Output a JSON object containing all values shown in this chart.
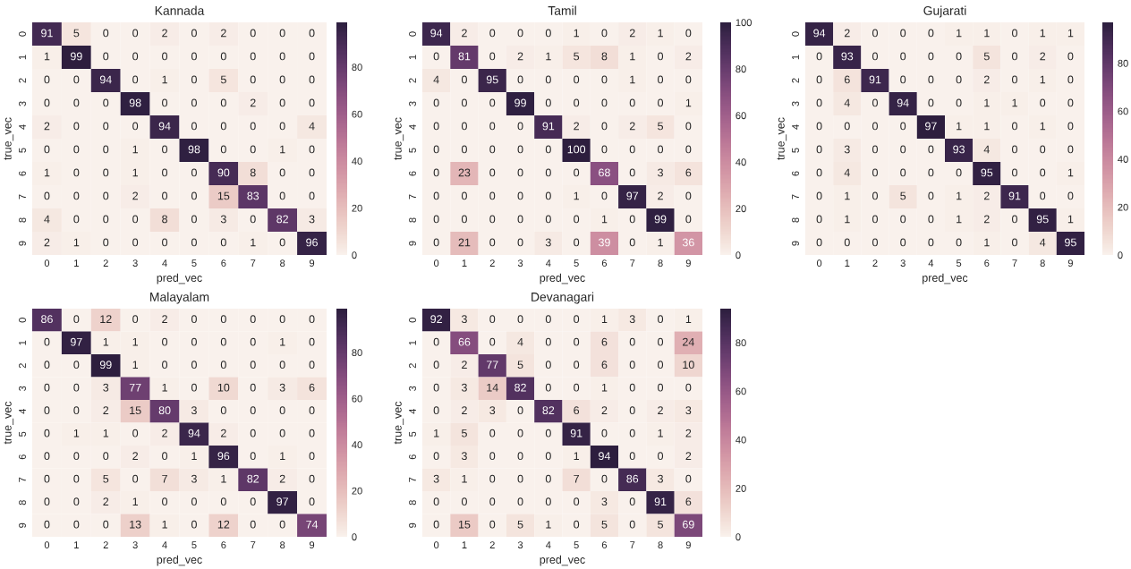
{
  "chart_data": [
    {
      "type": "heatmap",
      "title": "Kannada",
      "xlabel": "pred_vec",
      "ylabel": "true_vec",
      "categories": [
        "0",
        "1",
        "2",
        "3",
        "4",
        "5",
        "6",
        "7",
        "8",
        "9"
      ],
      "y_categories": [
        "0",
        "1",
        "2",
        "3",
        "4",
        "5",
        "6",
        "7",
        "8",
        "9"
      ],
      "cells": [
        [
          91,
          5,
          0,
          0,
          2,
          0,
          2,
          0,
          0,
          0
        ],
        [
          1,
          99,
          0,
          0,
          0,
          0,
          0,
          0,
          0,
          0
        ],
        [
          0,
          0,
          94,
          0,
          1,
          0,
          5,
          0,
          0,
          0
        ],
        [
          0,
          0,
          0,
          98,
          0,
          0,
          0,
          2,
          0,
          0
        ],
        [
          2,
          0,
          0,
          0,
          94,
          0,
          0,
          0,
          0,
          4
        ],
        [
          0,
          0,
          0,
          1,
          0,
          98,
          0,
          0,
          1,
          0
        ],
        [
          1,
          0,
          0,
          1,
          0,
          0,
          90,
          8,
          0,
          0
        ],
        [
          0,
          0,
          0,
          2,
          0,
          0,
          15,
          83,
          0,
          0
        ],
        [
          4,
          0,
          0,
          0,
          8,
          0,
          3,
          0,
          82,
          3
        ],
        [
          2,
          1,
          0,
          0,
          0,
          0,
          0,
          1,
          0,
          96
        ]
      ],
      "clim": [
        0,
        99
      ],
      "cticks": [
        0,
        20,
        40,
        60,
        80
      ],
      "data_labels": true
    },
    {
      "type": "heatmap",
      "title": "Tamil",
      "xlabel": "pred_vec",
      "ylabel": "true_vec",
      "categories": [
        "0",
        "1",
        "2",
        "3",
        "4",
        "5",
        "6",
        "7",
        "8",
        "9"
      ],
      "y_categories": [
        "0",
        "1",
        "2",
        "3",
        "4",
        "5",
        "6",
        "7",
        "8",
        "9"
      ],
      "cells": [
        [
          94,
          2,
          0,
          0,
          0,
          1,
          0,
          2,
          1,
          0
        ],
        [
          0,
          81,
          0,
          2,
          1,
          5,
          8,
          1,
          0,
          2
        ],
        [
          4,
          0,
          95,
          0,
          0,
          0,
          0,
          1,
          0,
          0
        ],
        [
          0,
          0,
          0,
          99,
          0,
          0,
          0,
          0,
          0,
          1
        ],
        [
          0,
          0,
          0,
          0,
          91,
          2,
          0,
          2,
          5,
          0
        ],
        [
          0,
          0,
          0,
          0,
          0,
          100,
          0,
          0,
          0,
          0
        ],
        [
          0,
          23,
          0,
          0,
          0,
          0,
          68,
          0,
          3,
          6
        ],
        [
          0,
          0,
          0,
          0,
          0,
          1,
          0,
          97,
          2,
          0
        ],
        [
          0,
          0,
          0,
          0,
          0,
          0,
          1,
          0,
          99,
          0
        ],
        [
          0,
          21,
          0,
          0,
          3,
          0,
          39,
          0,
          1,
          36
        ]
      ],
      "clim": [
        0,
        100
      ],
      "cticks": [
        0,
        20,
        40,
        60,
        80,
        100
      ],
      "data_labels": true
    },
    {
      "type": "heatmap",
      "title": "Gujarati",
      "xlabel": "pred_vec",
      "ylabel": "true_vec",
      "categories": [
        "0",
        "1",
        "2",
        "3",
        "4",
        "5",
        "6",
        "7",
        "8",
        "9"
      ],
      "y_categories": [
        "0",
        "1",
        "2",
        "3",
        "4",
        "5",
        "6",
        "7",
        "8",
        "9"
      ],
      "cells": [
        [
          94,
          2,
          0,
          0,
          0,
          1,
          1,
          0,
          1,
          1
        ],
        [
          0,
          93,
          0,
          0,
          0,
          0,
          5,
          0,
          2,
          0
        ],
        [
          0,
          6,
          91,
          0,
          0,
          0,
          2,
          0,
          1,
          0
        ],
        [
          0,
          4,
          0,
          94,
          0,
          0,
          1,
          1,
          0,
          0
        ],
        [
          0,
          0,
          0,
          0,
          97,
          1,
          1,
          0,
          1,
          0
        ],
        [
          0,
          3,
          0,
          0,
          0,
          93,
          4,
          0,
          0,
          0
        ],
        [
          0,
          4,
          0,
          0,
          0,
          0,
          95,
          0,
          0,
          1
        ],
        [
          0,
          1,
          0,
          5,
          0,
          1,
          2,
          91,
          0,
          0
        ],
        [
          0,
          1,
          0,
          0,
          0,
          1,
          2,
          0,
          95,
          1
        ],
        [
          0,
          0,
          0,
          0,
          0,
          0,
          1,
          0,
          4,
          95
        ]
      ],
      "clim": [
        0,
        97
      ],
      "cticks": [
        0,
        20,
        40,
        60,
        80
      ],
      "data_labels": true
    },
    {
      "type": "heatmap",
      "title": "Malayalam",
      "xlabel": "pred_vec",
      "ylabel": "true_vec",
      "categories": [
        "0",
        "1",
        "2",
        "3",
        "4",
        "5",
        "6",
        "7",
        "8",
        "9"
      ],
      "y_categories": [
        "0",
        "1",
        "2",
        "3",
        "4",
        "5",
        "6",
        "7",
        "8",
        "9"
      ],
      "cells": [
        [
          86,
          0,
          12,
          0,
          2,
          0,
          0,
          0,
          0,
          0
        ],
        [
          0,
          97,
          1,
          1,
          0,
          0,
          0,
          0,
          1,
          0
        ],
        [
          0,
          0,
          99,
          1,
          0,
          0,
          0,
          0,
          0,
          0
        ],
        [
          0,
          0,
          3,
          77,
          1,
          0,
          10,
          0,
          3,
          6
        ],
        [
          0,
          0,
          2,
          15,
          80,
          3,
          0,
          0,
          0,
          0
        ],
        [
          0,
          1,
          1,
          0,
          2,
          94,
          2,
          0,
          0,
          0
        ],
        [
          0,
          0,
          0,
          2,
          0,
          1,
          96,
          0,
          1,
          0
        ],
        [
          0,
          0,
          5,
          0,
          7,
          3,
          1,
          82,
          2,
          0
        ],
        [
          0,
          0,
          2,
          1,
          0,
          0,
          0,
          0,
          97,
          0
        ],
        [
          0,
          0,
          0,
          13,
          1,
          0,
          12,
          0,
          0,
          74
        ]
      ],
      "clim": [
        0,
        99
      ],
      "cticks": [
        0,
        20,
        40,
        60,
        80
      ],
      "data_labels": true
    },
    {
      "type": "heatmap",
      "title": "Devanagari",
      "xlabel": "pred_vec",
      "ylabel": "true_vec",
      "categories": [
        "0",
        "1",
        "2",
        "3",
        "4",
        "5",
        "6",
        "7",
        "8",
        "9"
      ],
      "y_categories": [
        "0",
        "1",
        "2",
        "3",
        "4",
        "5",
        "6",
        "7",
        "8",
        "9"
      ],
      "cells": [
        [
          92,
          3,
          0,
          0,
          0,
          0,
          1,
          3,
          0,
          1
        ],
        [
          0,
          66,
          0,
          4,
          0,
          0,
          6,
          0,
          0,
          24
        ],
        [
          0,
          2,
          77,
          5,
          0,
          0,
          6,
          0,
          0,
          10
        ],
        [
          0,
          3,
          14,
          82,
          0,
          0,
          1,
          0,
          0,
          0
        ],
        [
          0,
          2,
          3,
          0,
          82,
          6,
          2,
          0,
          2,
          3
        ],
        [
          1,
          5,
          0,
          0,
          0,
          91,
          0,
          0,
          1,
          2
        ],
        [
          0,
          3,
          0,
          0,
          0,
          1,
          94,
          0,
          0,
          2
        ],
        [
          3,
          1,
          0,
          0,
          0,
          7,
          0,
          86,
          3,
          0
        ],
        [
          0,
          0,
          0,
          0,
          0,
          0,
          3,
          0,
          91,
          6
        ],
        [
          0,
          15,
          0,
          5,
          1,
          0,
          5,
          0,
          5,
          69
        ]
      ],
      "clim": [
        0,
        94
      ],
      "cticks": [
        0,
        20,
        40,
        60,
        80
      ],
      "data_labels": true
    }
  ]
}
